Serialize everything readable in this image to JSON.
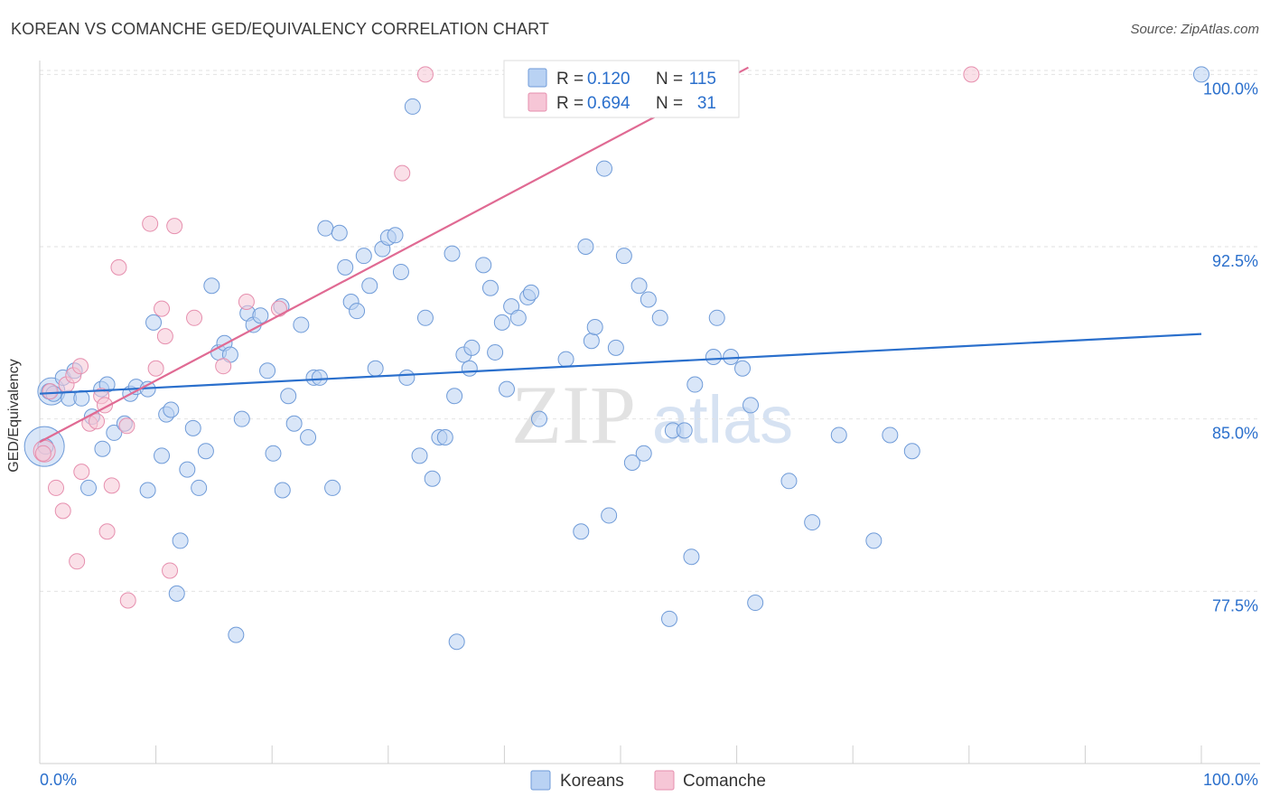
{
  "header": {
    "title": "KOREAN VS COMANCHE GED/EQUIVALENCY CORRELATION CHART",
    "source": "Source: ZipAtlas.com"
  },
  "watermark": {
    "zip": "ZIP",
    "atlas": "atlas"
  },
  "colors": {
    "korean_fill": "#b9d2f3",
    "korean_stroke": "#6f9bd8",
    "korean_line": "#2a6fcc",
    "comanche_fill": "#f6c6d6",
    "comanche_stroke": "#e68fae",
    "comanche_line": "#e06a93",
    "value_text": "#2a6fcc"
  },
  "legend_top": {
    "rows": [
      {
        "r_label": "R = ",
        "r_value": "0.120",
        "n_label": "N = ",
        "n_value": "115"
      },
      {
        "r_label": "R = ",
        "r_value": "0.694",
        "n_label": "N = ",
        "n_value": "31"
      }
    ]
  },
  "legend_bottom": {
    "items": [
      "Koreans",
      "Comanche"
    ]
  },
  "chart_data": {
    "type": "scatter",
    "title": "KOREAN VS COMANCHE GED/EQUIVALENCY CORRELATION CHART",
    "xlabel": "",
    "ylabel": "GED/Equivalency",
    "xlim": [
      0,
      100
    ],
    "ylim": [
      70.0,
      100.8
    ],
    "x_tick_labels": [
      "0.0%",
      "100.0%"
    ],
    "y_ticks": [
      77.5,
      85.0,
      92.5,
      100.0
    ],
    "y_tick_labels": [
      "77.5%",
      "85.0%",
      "92.5%",
      "100.0%"
    ],
    "series": [
      {
        "name": "Koreans",
        "r": 0.12,
        "n": 115,
        "trend": {
          "x": [
            0,
            100
          ],
          "y": [
            86.1,
            88.7
          ]
        },
        "points": [
          [
            0.8,
            86.2
          ],
          [
            0.5,
            83.8
          ],
          [
            1.2,
            86.1
          ],
          [
            2.0,
            86.8
          ],
          [
            2.5,
            85.9
          ],
          [
            3.0,
            87.1
          ],
          [
            4.2,
            82.0
          ],
          [
            4.5,
            85.1
          ],
          [
            5.3,
            86.3
          ],
          [
            5.4,
            83.7
          ],
          [
            5.8,
            86.5
          ],
          [
            6.4,
            84.4
          ],
          [
            7.3,
            84.8
          ],
          [
            7.8,
            86.1
          ],
          [
            8.3,
            86.4
          ],
          [
            9.3,
            81.9
          ],
          [
            9.8,
            89.2
          ],
          [
            10.5,
            83.4
          ],
          [
            10.9,
            85.2
          ],
          [
            11.3,
            85.4
          ],
          [
            11.8,
            77.4
          ],
          [
            12.1,
            79.7
          ],
          [
            12.7,
            82.8
          ],
          [
            13.2,
            84.6
          ],
          [
            13.7,
            82.0
          ],
          [
            14.3,
            83.6
          ],
          [
            14.8,
            90.8
          ],
          [
            15.4,
            87.9
          ],
          [
            15.9,
            88.3
          ],
          [
            16.4,
            87.8
          ],
          [
            16.9,
            75.6
          ],
          [
            17.4,
            85.0
          ],
          [
            17.9,
            89.6
          ],
          [
            18.4,
            89.1
          ],
          [
            19.0,
            89.5
          ],
          [
            19.6,
            87.1
          ],
          [
            20.1,
            83.5
          ],
          [
            20.8,
            89.9
          ],
          [
            21.4,
            86.0
          ],
          [
            21.9,
            84.8
          ],
          [
            22.5,
            89.1
          ],
          [
            23.1,
            84.2
          ],
          [
            23.6,
            86.8
          ],
          [
            24.1,
            86.8
          ],
          [
            24.6,
            93.3
          ],
          [
            25.2,
            82.0
          ],
          [
            25.8,
            93.1
          ],
          [
            26.3,
            91.6
          ],
          [
            26.8,
            90.1
          ],
          [
            27.3,
            89.7
          ],
          [
            27.9,
            92.1
          ],
          [
            28.4,
            90.8
          ],
          [
            28.9,
            87.2
          ],
          [
            29.5,
            92.4
          ],
          [
            30.0,
            92.9
          ],
          [
            30.6,
            93.0
          ],
          [
            31.1,
            91.4
          ],
          [
            31.6,
            86.8
          ],
          [
            32.1,
            98.6
          ],
          [
            32.7,
            83.4
          ],
          [
            33.2,
            89.4
          ],
          [
            33.8,
            82.4
          ],
          [
            34.4,
            84.2
          ],
          [
            34.9,
            84.2
          ],
          [
            35.5,
            92.2
          ],
          [
            35.7,
            86.0
          ],
          [
            35.9,
            75.3
          ],
          [
            36.5,
            87.8
          ],
          [
            37.2,
            88.1
          ],
          [
            37.0,
            87.2
          ],
          [
            38.2,
            91.7
          ],
          [
            38.8,
            90.7
          ],
          [
            39.2,
            87.9
          ],
          [
            39.8,
            89.2
          ],
          [
            40.2,
            86.3
          ],
          [
            40.6,
            89.9
          ],
          [
            41.2,
            89.4
          ],
          [
            42.0,
            90.3
          ],
          [
            42.3,
            90.5
          ],
          [
            43.0,
            85.0
          ],
          [
            45.3,
            87.6
          ],
          [
            46.6,
            80.1
          ],
          [
            47.0,
            92.5
          ],
          [
            47.5,
            88.4
          ],
          [
            47.8,
            89.0
          ],
          [
            48.6,
            95.9
          ],
          [
            49.0,
            80.8
          ],
          [
            49.6,
            88.1
          ],
          [
            50.3,
            92.1
          ],
          [
            51.0,
            83.1
          ],
          [
            51.6,
            90.8
          ],
          [
            52.0,
            83.5
          ],
          [
            52.4,
            90.2
          ],
          [
            53.4,
            89.4
          ],
          [
            54.2,
            76.3
          ],
          [
            54.5,
            84.5
          ],
          [
            55.5,
            84.5
          ],
          [
            56.1,
            79.0
          ],
          [
            56.4,
            86.5
          ],
          [
            58.0,
            87.7
          ],
          [
            58.3,
            89.4
          ],
          [
            59.5,
            87.7
          ],
          [
            60.5,
            87.2
          ],
          [
            61.2,
            85.6
          ],
          [
            61.6,
            77.0
          ],
          [
            64.5,
            82.3
          ],
          [
            66.5,
            80.5
          ],
          [
            68.8,
            84.3
          ],
          [
            71.8,
            79.7
          ],
          [
            73.2,
            84.3
          ],
          [
            75.1,
            83.6
          ],
          [
            100.0,
            100.0
          ],
          [
            20.9,
            81.9
          ],
          [
            9.3,
            86.3
          ],
          [
            3.6,
            85.9
          ]
        ]
      },
      {
        "name": "Comanche",
        "r": 0.694,
        "n": 31,
        "trend": {
          "x": [
            0,
            61
          ],
          "y": [
            84.0,
            100.3
          ]
        },
        "points": [
          [
            0.3,
            83.5
          ],
          [
            0.9,
            86.2
          ],
          [
            1.4,
            82.0
          ],
          [
            2.0,
            81.0
          ],
          [
            2.3,
            86.5
          ],
          [
            2.9,
            86.9
          ],
          [
            3.2,
            78.8
          ],
          [
            3.5,
            87.3
          ],
          [
            3.6,
            82.7
          ],
          [
            4.3,
            84.8
          ],
          [
            4.9,
            84.9
          ],
          [
            5.3,
            86.0
          ],
          [
            5.6,
            85.6
          ],
          [
            5.8,
            80.1
          ],
          [
            6.2,
            82.1
          ],
          [
            6.8,
            91.6
          ],
          [
            7.5,
            84.7
          ],
          [
            7.6,
            77.1
          ],
          [
            9.5,
            93.5
          ],
          [
            10.0,
            87.2
          ],
          [
            10.5,
            89.8
          ],
          [
            10.8,
            88.6
          ],
          [
            11.2,
            78.4
          ],
          [
            11.6,
            93.4
          ],
          [
            13.3,
            89.4
          ],
          [
            15.8,
            87.3
          ],
          [
            17.8,
            90.1
          ],
          [
            20.6,
            89.8
          ],
          [
            31.2,
            95.7
          ],
          [
            33.2,
            100.0
          ],
          [
            80.2,
            100.0
          ]
        ]
      }
    ]
  }
}
